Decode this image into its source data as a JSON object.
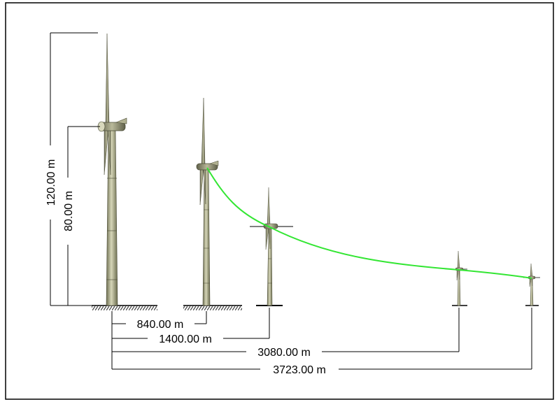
{
  "dimensions": {
    "total_height": "120.00 m",
    "hub_height": "80.00 m",
    "distance_2": "840.00 m",
    "distance_3": "1400.00 m",
    "distance_4": "3080.00 m",
    "distance_5": "3723.00 m"
  },
  "colors": {
    "background": "#ffffff",
    "border": "#000000",
    "tower": "#8a8b6a",
    "tower_highlight": "#c9c9aa",
    "line_of_sight": "#33e633",
    "dimension_line": "#000000",
    "ground_hatch": "#555555"
  }
}
